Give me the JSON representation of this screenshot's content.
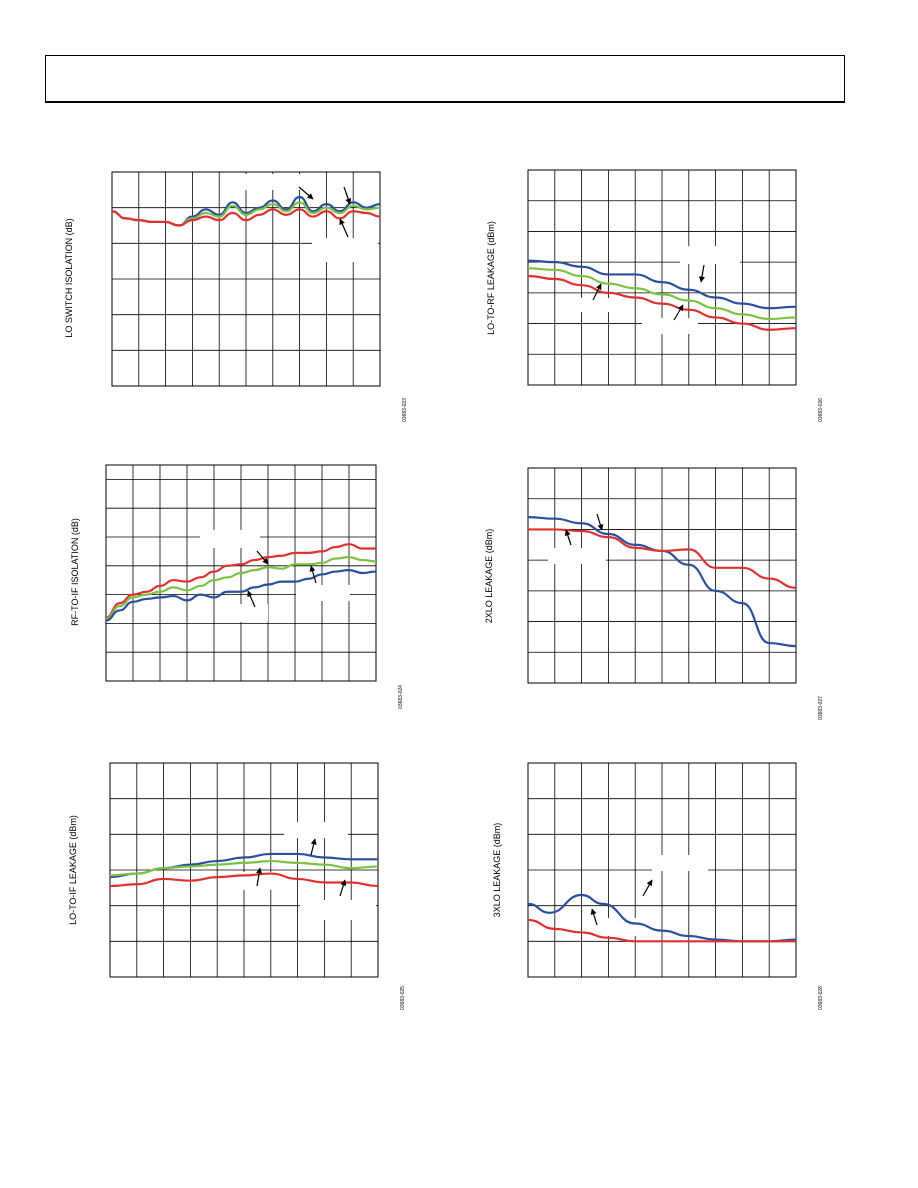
{
  "page": {
    "header": ""
  },
  "chart_data": [
    {
      "id": "lo-switch-isolation",
      "type": "line",
      "ylabel": "LO SWITCH ISOLATION (dB)",
      "figure_id": "03683-023",
      "xlim": [
        0,
        10
      ],
      "ylim": [
        0,
        6
      ],
      "grid": {
        "x_divisions": 10,
        "y_divisions": 6
      },
      "series": [
        {
          "color": "#2b4f9e",
          "x": [
            0,
            0.5,
            1,
            1.5,
            2,
            2.5,
            3,
            3.5,
            4,
            4.5,
            5,
            5.5,
            6,
            6.5,
            7,
            7.5,
            8,
            8.5,
            9,
            9.5,
            10
          ],
          "y": [
            4.9,
            4.7,
            4.65,
            4.6,
            4.6,
            4.5,
            4.75,
            4.95,
            4.8,
            5.15,
            4.85,
            5.0,
            5.2,
            4.95,
            5.3,
            4.9,
            5.1,
            4.9,
            5.15,
            5.0,
            5.1
          ]
        },
        {
          "color": "#7cc243",
          "x": [
            0,
            0.5,
            1,
            1.5,
            2,
            2.5,
            3,
            3.5,
            4,
            4.5,
            5,
            5.5,
            6,
            6.5,
            7,
            7.5,
            8,
            8.5,
            9,
            9.5,
            10
          ],
          "y": [
            4.9,
            4.7,
            4.65,
            4.6,
            4.6,
            4.5,
            4.7,
            4.85,
            4.75,
            5.05,
            4.8,
            4.95,
            5.1,
            4.9,
            5.15,
            4.85,
            5.0,
            4.85,
            5.05,
            4.95,
            5.0
          ]
        },
        {
          "color": "#e03030",
          "x": [
            0,
            0.5,
            1,
            1.5,
            2,
            2.5,
            3,
            3.5,
            4,
            4.5,
            5,
            5.5,
            6,
            6.5,
            7,
            7.5,
            8,
            8.5,
            9,
            9.5,
            10
          ],
          "y": [
            4.9,
            4.7,
            4.65,
            4.6,
            4.6,
            4.5,
            4.65,
            4.75,
            4.65,
            4.85,
            4.65,
            4.8,
            4.95,
            4.8,
            4.95,
            4.75,
            4.9,
            4.7,
            4.9,
            4.85,
            4.75
          ]
        }
      ]
    },
    {
      "id": "lo-to-rf-leakage",
      "type": "line",
      "ylabel": "LO-TO-RF LEAKAGE (dBm)",
      "figure_id": "03683-026",
      "xlim": [
        0,
        10
      ],
      "ylim": [
        0,
        7
      ],
      "grid": {
        "x_divisions": 10,
        "y_divisions": 7
      },
      "series": [
        {
          "color": "#2b4f9e",
          "x": [
            0,
            1,
            2,
            3,
            4,
            5,
            6,
            7,
            8,
            9,
            10
          ],
          "y": [
            4.05,
            4.0,
            3.85,
            3.6,
            3.6,
            3.35,
            3.1,
            2.85,
            2.65,
            2.5,
            2.55
          ]
        },
        {
          "color": "#7cc243",
          "x": [
            0,
            1,
            2,
            3,
            4,
            5,
            6,
            7,
            8,
            9,
            10
          ],
          "y": [
            3.8,
            3.75,
            3.55,
            3.3,
            3.15,
            2.95,
            2.75,
            2.5,
            2.3,
            2.15,
            2.2
          ]
        },
        {
          "color": "#e03030",
          "x": [
            0,
            1,
            2,
            3,
            4,
            5,
            6,
            7,
            8,
            9,
            10
          ],
          "y": [
            3.55,
            3.45,
            3.25,
            3.0,
            2.85,
            2.65,
            2.45,
            2.2,
            2.0,
            1.8,
            1.85
          ]
        }
      ]
    },
    {
      "id": "rf-to-if-isolation",
      "type": "line",
      "ylabel": "RF-TO-IF ISOLATION (dB)",
      "figure_id": "03683-024",
      "xlim": [
        0,
        10
      ],
      "ylim": [
        0,
        7.5
      ],
      "grid": {
        "x_divisions": 10,
        "y_divisions": 7.5
      },
      "series": [
        {
          "color": "#e03030",
          "x": [
            0,
            0.5,
            1,
            1.5,
            2,
            2.5,
            3,
            3.5,
            4,
            4.5,
            5,
            5.5,
            6,
            6.5,
            7,
            7.5,
            8,
            8.5,
            9,
            9.5,
            10
          ],
          "y": [
            2.2,
            2.7,
            3.0,
            3.1,
            3.3,
            3.5,
            3.45,
            3.6,
            3.8,
            4.0,
            4.05,
            4.2,
            4.3,
            4.35,
            4.45,
            4.45,
            4.5,
            4.65,
            4.75,
            4.6,
            4.6
          ]
        },
        {
          "color": "#7cc243",
          "x": [
            0,
            0.5,
            1,
            1.5,
            2,
            2.5,
            3,
            3.5,
            4,
            4.5,
            5,
            5.5,
            6,
            6.5,
            7,
            7.5,
            8,
            8.5,
            9,
            9.5,
            10
          ],
          "y": [
            2.15,
            2.6,
            2.9,
            3.0,
            3.1,
            3.25,
            3.15,
            3.3,
            3.5,
            3.6,
            3.75,
            3.85,
            3.95,
            3.9,
            4.05,
            4.05,
            4.1,
            4.25,
            4.3,
            4.2,
            4.15
          ]
        },
        {
          "color": "#2b4f9e",
          "x": [
            0,
            0.5,
            1,
            1.5,
            2,
            2.5,
            3,
            3.5,
            4,
            4.5,
            5,
            5.5,
            6,
            6.5,
            7,
            7.5,
            8,
            8.5,
            9,
            9.5,
            10
          ],
          "y": [
            2.1,
            2.45,
            2.75,
            2.85,
            2.9,
            2.95,
            2.8,
            3.0,
            2.9,
            3.1,
            3.1,
            3.25,
            3.35,
            3.45,
            3.45,
            3.55,
            3.7,
            3.8,
            3.85,
            3.75,
            3.8
          ]
        }
      ]
    },
    {
      "id": "2xlo-leakage",
      "type": "line",
      "ylabel": "2XLO LEAKAGE (dBm)",
      "figure_id": "03683-027",
      "xlim": [
        0,
        10
      ],
      "ylim": [
        0,
        7
      ],
      "grid": {
        "x_divisions": 10,
        "y_divisions": 7
      },
      "series": [
        {
          "color": "#2b4f9e",
          "x": [
            0,
            1,
            2,
            3,
            4,
            5,
            6,
            7,
            8,
            9,
            10
          ],
          "y": [
            5.4,
            5.35,
            5.2,
            4.85,
            4.5,
            4.3,
            3.85,
            3.0,
            2.6,
            1.3,
            1.2
          ]
        },
        {
          "color": "#e03030",
          "x": [
            0,
            1,
            2,
            3,
            4,
            5,
            6,
            7,
            8,
            9,
            10
          ],
          "y": [
            5.0,
            5.0,
            4.95,
            4.75,
            4.4,
            4.3,
            4.35,
            3.75,
            3.75,
            3.4,
            3.1
          ]
        }
      ]
    },
    {
      "id": "lo-to-if-leakage",
      "type": "line",
      "ylabel": "LO-TO-IF LEAKAGE (dBm)",
      "figure_id": "03683-025",
      "xlim": [
        0,
        10
      ],
      "ylim": [
        0,
        6
      ],
      "grid": {
        "x_divisions": 10,
        "y_divisions": 6
      },
      "series": [
        {
          "color": "#2b4f9e",
          "x": [
            0,
            1,
            2,
            3,
            4,
            5,
            6,
            7,
            8,
            9,
            10
          ],
          "y": [
            2.8,
            2.9,
            3.05,
            3.15,
            3.25,
            3.35,
            3.45,
            3.45,
            3.35,
            3.3,
            3.3
          ]
        },
        {
          "color": "#7cc243",
          "x": [
            0,
            1,
            2,
            3,
            4,
            5,
            6,
            7,
            8,
            9,
            10
          ],
          "y": [
            2.85,
            2.9,
            3.05,
            3.1,
            3.15,
            3.2,
            3.25,
            3.2,
            3.15,
            3.05,
            3.1
          ]
        },
        {
          "color": "#e03030",
          "x": [
            0,
            1,
            2,
            3,
            4,
            5,
            6,
            7,
            8,
            9,
            10
          ],
          "y": [
            2.55,
            2.6,
            2.75,
            2.7,
            2.8,
            2.85,
            2.9,
            2.75,
            2.65,
            2.65,
            2.55
          ]
        }
      ]
    },
    {
      "id": "3xlo-leakage",
      "type": "line",
      "ylabel": "3XLO LEAKAGE (dBm)",
      "figure_id": "03683-028",
      "xlim": [
        0,
        10
      ],
      "ylim": [
        0,
        6
      ],
      "grid": {
        "x_divisions": 10,
        "y_divisions": 6
      },
      "series": [
        {
          "color": "#2b4f9e",
          "x": [
            0,
            0.8,
            2,
            2.8,
            4,
            5,
            6,
            7,
            8,
            9,
            10
          ],
          "y": [
            2.05,
            1.8,
            2.3,
            2.05,
            1.5,
            1.3,
            1.15,
            1.05,
            1.0,
            1.0,
            1.05
          ]
        },
        {
          "color": "#e03030",
          "x": [
            0,
            1,
            2,
            3,
            4,
            5,
            6,
            7,
            8,
            9,
            10
          ],
          "y": [
            1.6,
            1.35,
            1.25,
            1.1,
            1.0,
            1.0,
            1.0,
            1.0,
            1.0,
            1.0,
            1.0
          ]
        }
      ]
    }
  ]
}
